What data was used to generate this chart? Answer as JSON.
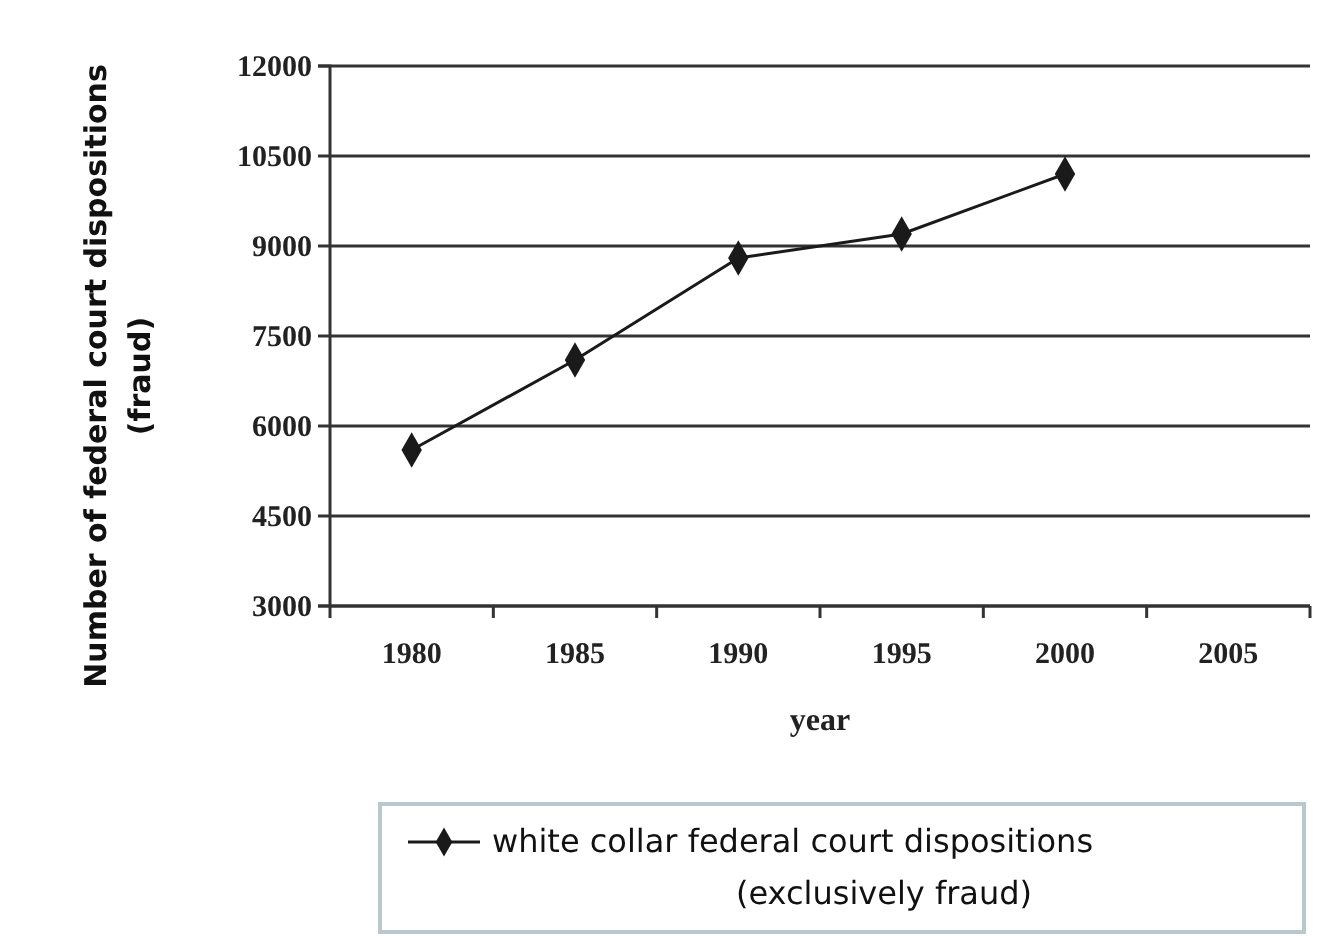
{
  "chart_data": {
    "type": "line",
    "xlabel": "year",
    "ylabel": "Number of federal court dispositions (fraud)",
    "categories": [
      "1980",
      "1985",
      "1990",
      "1995",
      "2000",
      "2005"
    ],
    "series": [
      {
        "name": "white collar federal court dispositions (exclusively fraud)",
        "color": "#1a1a1a",
        "values": [
          5600,
          7100,
          8800,
          9200,
          10200,
          null
        ]
      }
    ],
    "ylim": [
      3000,
      12000
    ],
    "yticks": [
      3000,
      4500,
      6000,
      7500,
      9000,
      10500,
      12000
    ],
    "grid": "y",
    "legend": "bottom",
    "marker": "diamond",
    "line_style": "solid"
  }
}
